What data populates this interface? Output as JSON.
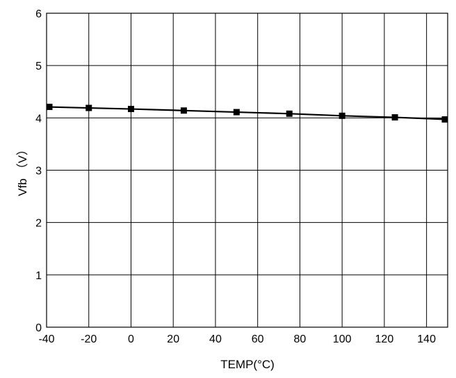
{
  "chart_data": {
    "type": "line",
    "title": "",
    "xlabel": "TEMP(°C)",
    "ylabel": "Vfb （V）",
    "xlim": [
      -40,
      150
    ],
    "ylim": [
      0,
      6
    ],
    "x_ticks": [
      -40,
      -20,
      0,
      20,
      40,
      60,
      80,
      100,
      120,
      140
    ],
    "x_tick_labels": [
      "-40",
      "-20",
      "0",
      "20",
      "40",
      "60",
      "80",
      "100",
      "120",
      "140"
    ],
    "y_ticks": [
      0,
      1,
      2,
      3,
      4,
      5,
      6
    ],
    "y_tick_labels": [
      "0",
      "1",
      "2",
      "3",
      "4",
      "5",
      "6"
    ],
    "grid": true,
    "legend": "none",
    "series": [
      {
        "marker": "square",
        "color": "#000000",
        "x": [
          -40,
          -20,
          0,
          25,
          50,
          75,
          100,
          125,
          150
        ],
        "y": [
          4.21,
          4.19,
          4.17,
          4.14,
          4.11,
          4.08,
          4.04,
          4.01,
          3.97
        ]
      }
    ]
  }
}
